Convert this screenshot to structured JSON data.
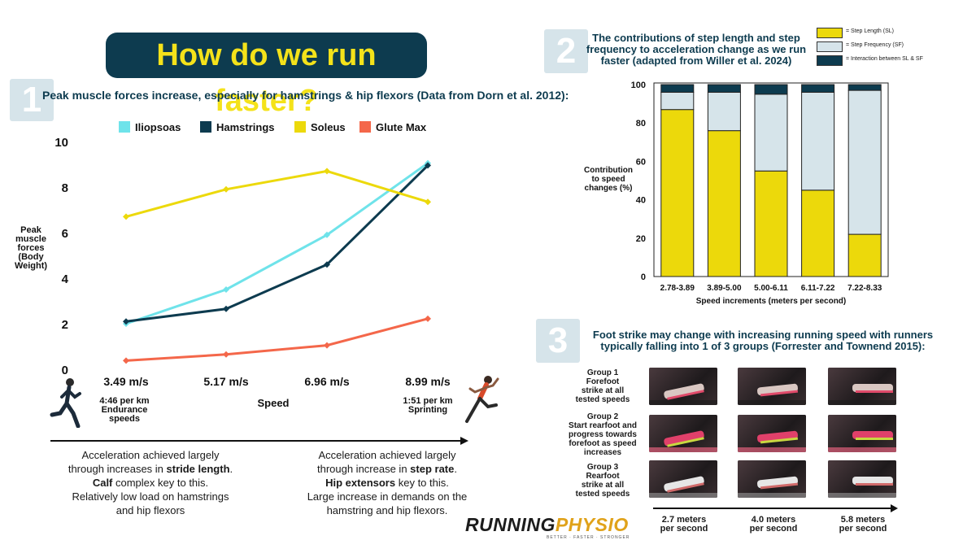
{
  "main_title": "How do we run faster?",
  "section1": {
    "number": "1",
    "title": "Peak muscle forces increase, especially for hamstrings & hip flexors (Data from Dorn et al. 2012):",
    "ylabel_lines": [
      "Peak",
      "muscle",
      "forces",
      "(Body",
      "Weight)"
    ],
    "xlabel": "Speed",
    "sub_left": [
      "4:46 per km",
      "Endurance",
      "speeds"
    ],
    "sub_right": [
      "1:51 per km",
      "Sprinting"
    ],
    "caption_left": [
      [
        "Acceleration achieved largely"
      ],
      [
        "through increases in ",
        "stride length",
        "."
      ],
      [
        "Calf",
        " complex key to this."
      ],
      [
        "Relatively low load on hamstrings"
      ],
      [
        "and hip flexors"
      ]
    ],
    "caption_right": [
      [
        "Acceleration achieved largely"
      ],
      [
        "through increase in ",
        "step rate",
        "."
      ],
      [
        "Hip extensors",
        " key to this."
      ],
      [
        "Large increase in demands on the"
      ],
      [
        "hamstring and hip flexors."
      ]
    ]
  },
  "section2": {
    "number": "2",
    "title_lines": [
      "The contributions of step length and step",
      "frequency to acceleration change as we run",
      "faster (adapted from Willer et al. 2024)"
    ],
    "ylabel_lines": [
      "Contribution",
      "to speed",
      "changes (%)"
    ],
    "xlabel": "Speed increments (meters per second)",
    "legend": [
      {
        "label": "= Step Length (SL)",
        "color": "#ecd90b"
      },
      {
        "label": "= Step Frequency (SF)",
        "color": "#d6e4ea"
      },
      {
        "label": "= Interaction between SL & SF",
        "color": "#0d3b4f"
      }
    ]
  },
  "section3": {
    "number": "3",
    "title_lines": [
      "Foot strike may change with increasing running speed with runners",
      "typically falling into 1 of 3 groups (Forrester and Townend 2015):"
    ],
    "groups": [
      [
        "Group 1",
        "Forefoot",
        "strike at all",
        "tested speeds"
      ],
      [
        "Group 2",
        "Start rearfoot and",
        "progress towards",
        "forefoot as speed",
        "increases"
      ],
      [
        "Group 3",
        "Rearfoot",
        "strike at all",
        "tested speeds"
      ]
    ],
    "speeds": [
      [
        "2.7 meters",
        "per second"
      ],
      [
        "4.0 meters",
        "per second"
      ],
      [
        "5.8 meters",
        "per second"
      ]
    ]
  },
  "logo": {
    "brand": "RUNNINGPHYSIO",
    "tagline": "BETTER · FASTER · STRONGER"
  },
  "chart_data": [
    {
      "type": "line",
      "title": "",
      "xlabel": "Speed",
      "ylabel": "Peak muscle forces (Body Weight)",
      "x": [
        "3.49 m/s",
        "5.17 m/s",
        "6.96 m/s",
        "8.99 m/s"
      ],
      "ylim": [
        0,
        10
      ],
      "yticks": [
        0,
        2,
        4,
        6,
        8,
        10
      ],
      "grid": false,
      "legend_position": "top",
      "series": [
        {
          "name": "Iliopsoas",
          "color": "#6fe3ea",
          "values": [
            2.0,
            3.5,
            5.9,
            9.05
          ]
        },
        {
          "name": "Hamstrings",
          "color": "#0d3b4f",
          "values": [
            2.1,
            2.65,
            4.6,
            8.95
          ]
        },
        {
          "name": "Soleus",
          "color": "#ecd90b",
          "values": [
            6.7,
            7.9,
            8.7,
            7.35
          ]
        },
        {
          "name": "Glute Max",
          "color": "#f4674a",
          "values": [
            0.38,
            0.65,
            1.05,
            2.22
          ]
        }
      ]
    },
    {
      "type": "bar",
      "stacked": true,
      "title": "The contributions of step length and step frequency to acceleration change as we run faster (adapted from Willer et al. 2024)",
      "xlabel": "Speed increments (meters per second)",
      "ylabel": "Contribution to speed changes (%)",
      "categories": [
        "2.78-3.89",
        "3.89-5.00",
        "5.00-6.11",
        "6.11-7.22",
        "7.22-8.33"
      ],
      "ylim": [
        0,
        100
      ],
      "yticks": [
        0,
        20,
        40,
        60,
        80,
        100
      ],
      "grid": false,
      "legend_position": "top-right",
      "series": [
        {
          "name": "Step Length (SL)",
          "color": "#ecd90b",
          "values": [
            87,
            76,
            55,
            45,
            22
          ]
        },
        {
          "name": "Step Frequency (SF)",
          "color": "#d6e4ea",
          "values": [
            9,
            20,
            40,
            51,
            75
          ]
        },
        {
          "name": "Interaction between SL & SF",
          "color": "#0d3b4f",
          "values": [
            4,
            4,
            5,
            4,
            3
          ]
        }
      ]
    }
  ]
}
